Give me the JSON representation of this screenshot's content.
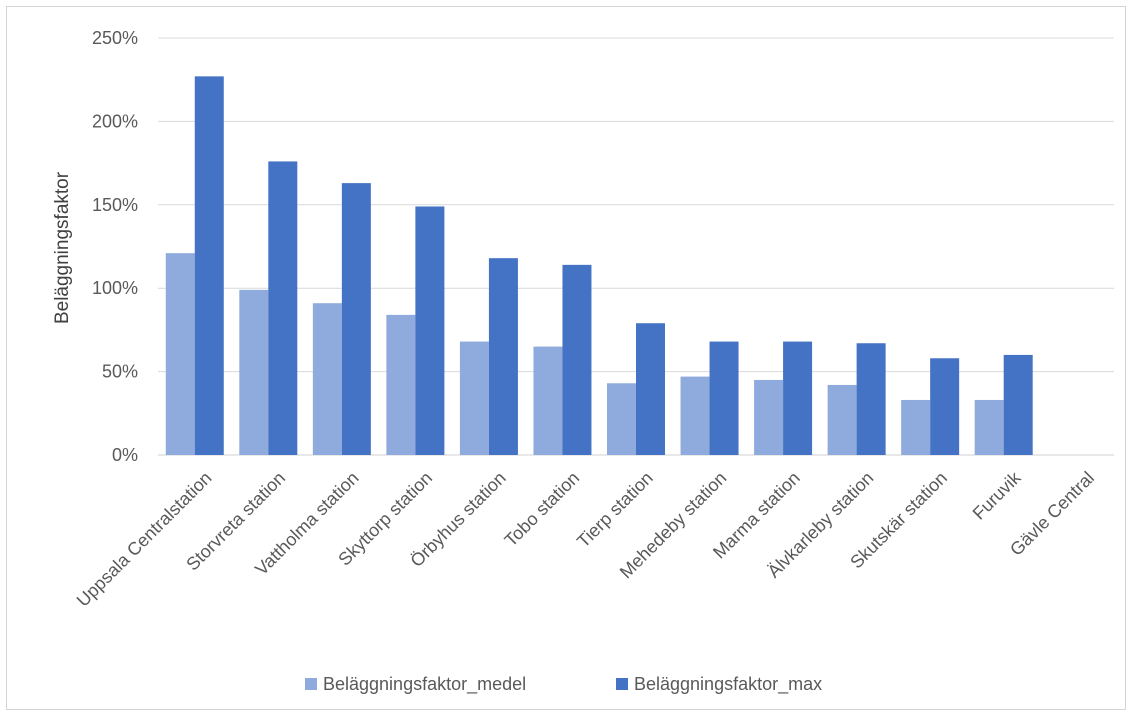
{
  "chart_data": {
    "type": "bar",
    "title": "",
    "xlabel": "",
    "ylabel": "Beläggningsfaktor",
    "ylim": [
      0,
      2.5
    ],
    "yticks": [
      0,
      0.5,
      1.0,
      1.5,
      2.0,
      2.5
    ],
    "ytick_labels": [
      "0%",
      "50%",
      "100%",
      "150%",
      "200%",
      "250%"
    ],
    "grid": true,
    "legend": "bottom",
    "categories": [
      "Uppsala Centralstation",
      "Storvreta station",
      "Vattholma station",
      "Skyttorp station",
      "Örbyhus station",
      "Tobo station",
      "Tierp station",
      "Mehedeby station",
      "Marma station",
      "Älvkarleby station",
      "Skutskär station",
      "Furuvik",
      "Gävle Central"
    ],
    "series": [
      {
        "name": "Beläggningsfaktor_medel",
        "color": "#8faadc",
        "values": [
          1.21,
          0.99,
          0.91,
          0.84,
          0.68,
          0.65,
          0.43,
          0.47,
          0.45,
          0.42,
          0.33,
          0.33,
          null
        ]
      },
      {
        "name": "Beläggningsfaktor_max",
        "color": "#4472c4",
        "values": [
          2.27,
          1.76,
          1.63,
          1.49,
          1.18,
          1.14,
          0.79,
          0.68,
          0.68,
          0.67,
          0.58,
          0.6,
          null
        ]
      }
    ]
  }
}
